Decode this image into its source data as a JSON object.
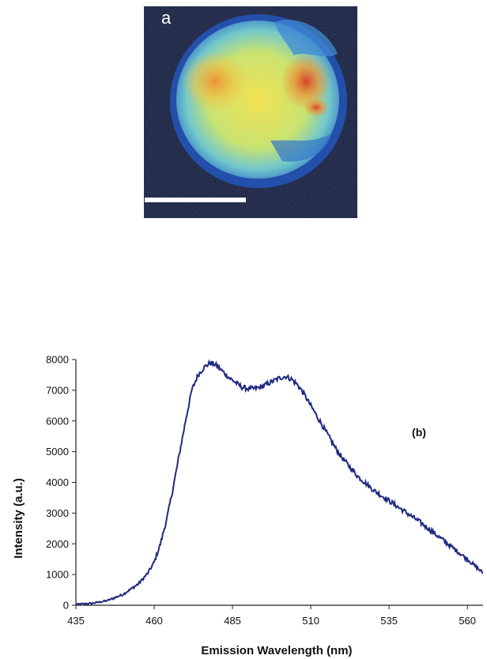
{
  "panel_a": {
    "label": "a"
  },
  "chart_data": {
    "type": "line",
    "annotation": "(b)",
    "xlabel": "Emission Wavelength (nm)",
    "ylabel": "Intensity (a.u.)",
    "xlim": [
      435,
      565
    ],
    "ylim": [
      0,
      8000
    ],
    "x_ticks": [
      435,
      460,
      485,
      510,
      535,
      560
    ],
    "y_ticks": [
      0,
      1000,
      2000,
      3000,
      4000,
      5000,
      6000,
      7000,
      8000
    ],
    "grid": false,
    "line_color": "#1f2a80",
    "series": [
      {
        "x": [
          435,
          440,
          445,
          450,
          455,
          458,
          460,
          462,
          464,
          466,
          468,
          470,
          472,
          474,
          476,
          478,
          480,
          482,
          484,
          486,
          488,
          490,
          492,
          494,
          496,
          498,
          500,
          502,
          504,
          506,
          508,
          510,
          512,
          514,
          516,
          518,
          520,
          525,
          530,
          535,
          540,
          545,
          550,
          555,
          560,
          565
        ],
        "y": [
          30,
          60,
          150,
          350,
          700,
          1050,
          1400,
          2000,
          2800,
          3800,
          4900,
          6000,
          7000,
          7500,
          7750,
          7900,
          7800,
          7600,
          7400,
          7250,
          7100,
          7050,
          7050,
          7100,
          7200,
          7300,
          7400,
          7450,
          7350,
          7150,
          6850,
          6500,
          6150,
          5800,
          5450,
          5100,
          4800,
          4200,
          3750,
          3400,
          3050,
          2700,
          2300,
          1900,
          1500,
          1050
        ]
      }
    ]
  }
}
